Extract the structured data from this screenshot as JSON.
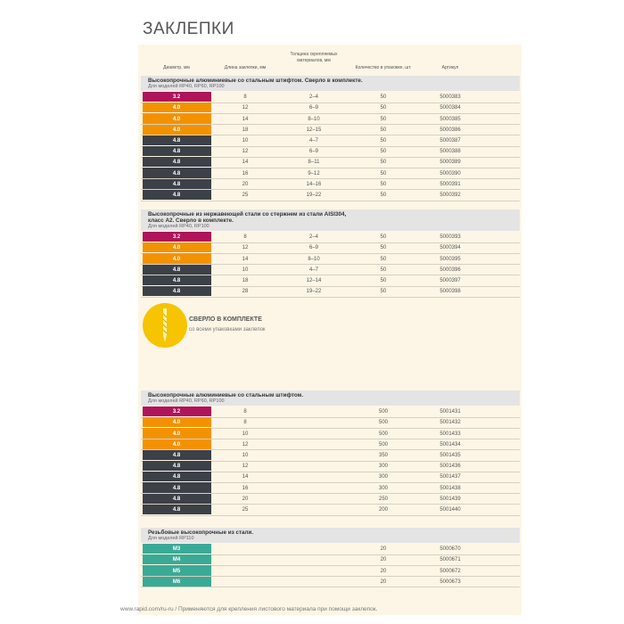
{
  "page_title": "ЗАКЛЕПКИ",
  "columns": [
    "Диаметр, мм",
    "Длина заклепки, мм",
    [
      "Толщина скрепляемых",
      "материалов, мм"
    ],
    "Количество в упаковке, шт.",
    "Артикул"
  ],
  "sections": [
    {
      "title": [
        "Высокопрочные алюминиевые со стальным штифтом. Сверло в комплекте."
      ],
      "subtitle": "Для моделей RP40, RP60, RP100",
      "rows": [
        {
          "color": "#b0145a",
          "cells": [
            "3.2",
            "8",
            "2–4",
            "50",
            "5000383"
          ]
        },
        {
          "color": "#f39200",
          "cells": [
            "4.0",
            "12",
            "6–9",
            "50",
            "5000384"
          ]
        },
        {
          "color": "#f39200",
          "cells": [
            "4.0",
            "14",
            "8–10",
            "50",
            "5000385"
          ]
        },
        {
          "color": "#f39200",
          "cells": [
            "4.0",
            "18",
            "12–15",
            "50",
            "5000386"
          ]
        },
        {
          "color": "#3c4047",
          "cells": [
            "4.8",
            "10",
            "4–7",
            "50",
            "5000387"
          ]
        },
        {
          "color": "#3c4047",
          "cells": [
            "4.8",
            "12",
            "6–9",
            "50",
            "5000388"
          ]
        },
        {
          "color": "#3c4047",
          "cells": [
            "4.8",
            "14",
            "8–11",
            "50",
            "5000389"
          ]
        },
        {
          "color": "#3c4047",
          "cells": [
            "4.8",
            "16",
            "9–12",
            "50",
            "5000390"
          ]
        },
        {
          "color": "#3c4047",
          "cells": [
            "4.8",
            "20",
            "14–16",
            "50",
            "5000391"
          ]
        },
        {
          "color": "#3c4047",
          "cells": [
            "4.8",
            "25",
            "19–22",
            "50",
            "5000392"
          ]
        }
      ]
    },
    {
      "title": [
        "Высокопрочные из нержавеющей стали со стержнем из стали AISI304,",
        "класс А2. Сверло в комплекте."
      ],
      "subtitle": "Для моделей RP40, RP100",
      "rows": [
        {
          "color": "#b0145a",
          "cells": [
            "3.2",
            "8",
            "2–4",
            "50",
            "5000393"
          ]
        },
        {
          "color": "#f39200",
          "cells": [
            "4.0",
            "12",
            "6–9",
            "50",
            "5000394"
          ]
        },
        {
          "color": "#f39200",
          "cells": [
            "4.0",
            "14",
            "8–10",
            "50",
            "5000395"
          ]
        },
        {
          "color": "#3c4047",
          "cells": [
            "4.8",
            "10",
            "4–7",
            "50",
            "5000396"
          ]
        },
        {
          "color": "#3c4047",
          "cells": [
            "4.8",
            "18",
            "12–14",
            "50",
            "5000397"
          ]
        },
        {
          "color": "#3c4047",
          "cells": [
            "4.8",
            "28",
            "19–22",
            "50",
            "5000398"
          ]
        }
      ]
    },
    {
      "title": [
        "Высокопрочные алюминиевые со стальным штифтом."
      ],
      "subtitle": "Для моделей RP40, RP60, RP100",
      "rows": [
        {
          "color": "#b0145a",
          "cells": [
            "3.2",
            "8",
            "500",
            "5001431"
          ]
        },
        {
          "color": "#f39200",
          "cells": [
            "4.0",
            "8",
            "500",
            "5001432"
          ]
        },
        {
          "color": "#f39200",
          "cells": [
            "4.0",
            "10",
            "500",
            "5001433"
          ]
        },
        {
          "color": "#f39200",
          "cells": [
            "4.0",
            "12",
            "500",
            "5001434"
          ]
        },
        {
          "color": "#3c4047",
          "cells": [
            "4.8",
            "10",
            "350",
            "5001435"
          ]
        },
        {
          "color": "#3c4047",
          "cells": [
            "4.8",
            "12",
            "300",
            "5001436"
          ]
        },
        {
          "color": "#3c4047",
          "cells": [
            "4.8",
            "14",
            "300",
            "5001437"
          ]
        },
        {
          "color": "#3c4047",
          "cells": [
            "4.8",
            "16",
            "300",
            "5001438"
          ]
        },
        {
          "color": "#3c4047",
          "cells": [
            "4.8",
            "20",
            "250",
            "5001439"
          ]
        },
        {
          "color": "#3c4047",
          "cells": [
            "4.8",
            "25",
            "200",
            "5001440"
          ]
        }
      ]
    },
    {
      "title": [
        "Резьбовые высокопрочные из стали."
      ],
      "subtitle": "Для моделей RP110",
      "rows": [
        {
          "color": "#3aaa96",
          "cells": [
            "M3",
            "20",
            "5000670"
          ]
        },
        {
          "color": "#3aaa96",
          "cells": [
            "M4",
            "20",
            "5000671"
          ]
        },
        {
          "color": "#3aaa96",
          "cells": [
            "M5",
            "20",
            "5000672"
          ]
        },
        {
          "color": "#3aaa96",
          "cells": [
            "M6",
            "20",
            "5000673"
          ]
        }
      ]
    }
  ],
  "badge": {
    "title": "СВЕРЛО В КОМПЛЕКТЕ",
    "text": "со всеми упаковками заклепок"
  },
  "footer": "www.rapid.com/ru-ru  /  Применяются для крепления листового материала при помощи заклепок."
}
